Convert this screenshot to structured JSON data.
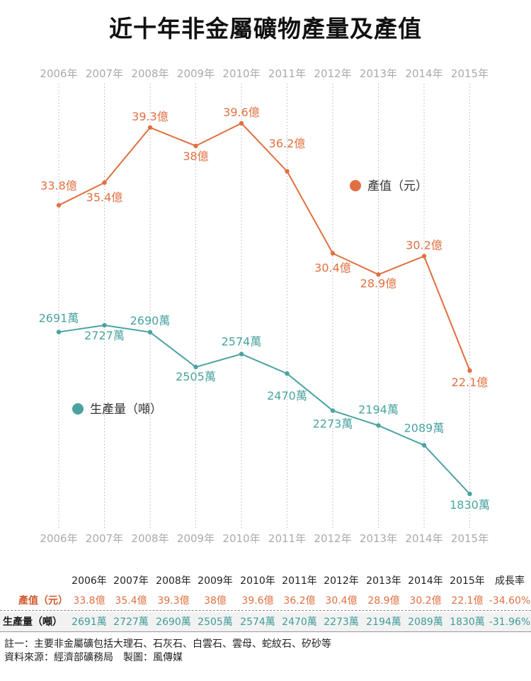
{
  "title": "近十年非金屬礦物產量及產值",
  "chart_data": {
    "type": "line",
    "categories": [
      "2006年",
      "2007年",
      "2008年",
      "2009年",
      "2010年",
      "2011年",
      "2012年",
      "2013年",
      "2014年",
      "2015年"
    ],
    "series": [
      {
        "name": "產值（元）",
        "unit": "億",
        "color": "#e07040",
        "values": [
          33.8,
          35.4,
          39.3,
          38,
          39.6,
          36.2,
          30.4,
          28.9,
          30.2,
          22.1
        ],
        "labels": [
          "33.8億",
          "35.4億",
          "39.3億",
          "38億",
          "39.6億",
          "36.2億",
          "30.4億",
          "28.9億",
          "30.2億",
          "22.1億"
        ]
      },
      {
        "name": "生產量（噸）",
        "unit": "萬",
        "color": "#4aa3a0",
        "values": [
          2691,
          2727,
          2690,
          2505,
          2574,
          2470,
          2273,
          2194,
          2089,
          1830
        ],
        "labels": [
          "2691萬",
          "2727萬",
          "2690萬",
          "2505萬",
          "2574萬",
          "2470萬",
          "2273萬",
          "2194萬",
          "2089萬",
          "1830萬"
        ]
      }
    ],
    "grid": "vertical dotted"
  },
  "table": {
    "headers": [
      "2006年",
      "2007年",
      "2008年",
      "2009年",
      "2010年",
      "2011年",
      "2012年",
      "2013年",
      "2014年",
      "2015年",
      "成長率"
    ],
    "rows": [
      {
        "label": "產值（元）",
        "cells": [
          "33.8億",
          "35.4億",
          "39.3億",
          "38億",
          "39.6億",
          "36.2億",
          "30.4億",
          "28.9億",
          "30.2億",
          "22.1億",
          "-34.60%"
        ]
      },
      {
        "label": "生產量（噸）",
        "cells": [
          "2691萬",
          "2727萬",
          "2690萬",
          "2505萬",
          "2574萬",
          "2470萬",
          "2273萬",
          "2194萬",
          "2089萬",
          "1830萬",
          "-31.96%"
        ]
      }
    ]
  },
  "notes": {
    "note1": "註一：主要非金屬礦包括大理石、石灰石、白雲石、雲母、蛇紋石、矽砂等",
    "source": "資料來源：經濟部礦務局　製圖：風傳媒"
  }
}
